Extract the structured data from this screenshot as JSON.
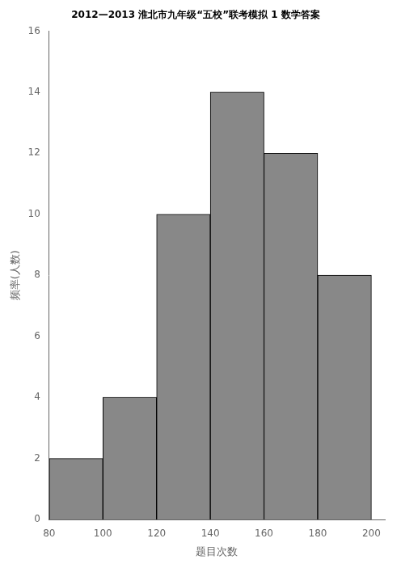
{
  "chart_data": {
    "type": "histogram",
    "title": "2012—2013 淮北市九年级“五校”联考模拟 1 数学答案",
    "x_label": "题目次数",
    "y_label": "频率(人数)",
    "bins": [
      80,
      100,
      120,
      140,
      160,
      180,
      200
    ],
    "values": [
      2,
      4,
      10,
      14,
      12,
      8
    ],
    "color": "#888888",
    "xlim": [
      80,
      205
    ],
    "xticks": [
      80,
      100,
      120,
      140,
      160,
      180,
      200
    ],
    "ylim": [
      0,
      16
    ],
    "yticks": [
      0,
      2,
      4,
      6,
      8,
      10,
      12,
      14,
      16
    ],
    "grid": false
  }
}
